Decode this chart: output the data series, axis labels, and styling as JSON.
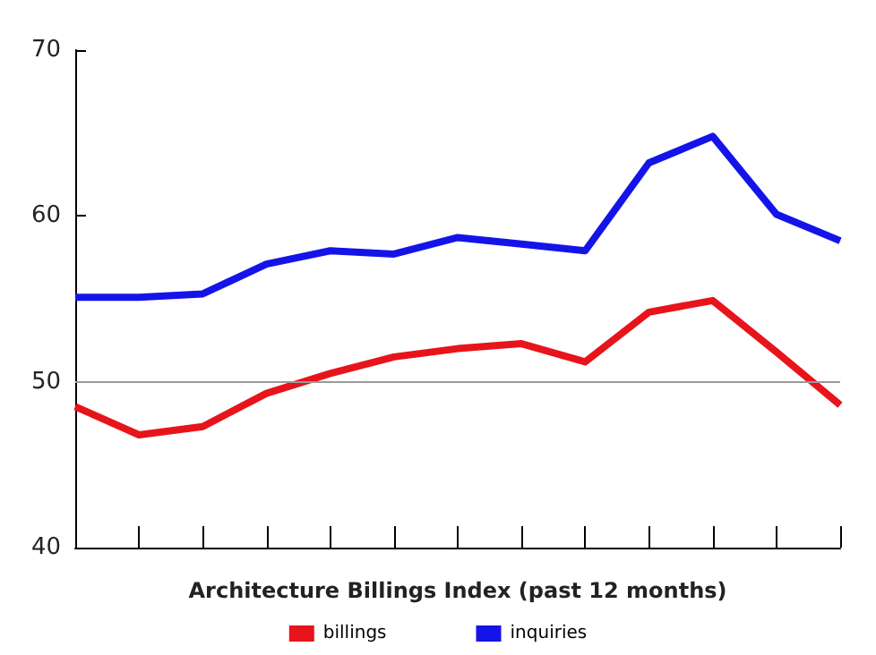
{
  "chart_data": {
    "type": "line",
    "xlabel": "Architecture Billings Index (past 12 months)",
    "categories": [
      null,
      null,
      null,
      null,
      null,
      null,
      null,
      null,
      null,
      null,
      null,
      null,
      null
    ],
    "series": [
      {
        "name": "billings",
        "color": "#e8141b",
        "values": [
          48.5,
          46.8,
          47.3,
          49.3,
          50.5,
          51.5,
          52.0,
          52.3,
          51.2,
          54.2,
          54.9,
          51.8,
          48.6
        ]
      },
      {
        "name": "inquiries",
        "color": "#1414e8",
        "values": [
          55.1,
          55.1,
          55.3,
          57.1,
          57.9,
          57.7,
          58.7,
          58.3,
          57.9,
          63.2,
          64.8,
          60.1,
          58.5
        ]
      }
    ],
    "ylim": [
      40,
      70
    ],
    "yticks": [
      40,
      50,
      60,
      70
    ],
    "grid": false,
    "legend": "bottom",
    "marker": "none",
    "line_style": "solid",
    "ref_lines": [
      {
        "axis": "y",
        "value": 50,
        "color": "#999999"
      }
    ]
  }
}
